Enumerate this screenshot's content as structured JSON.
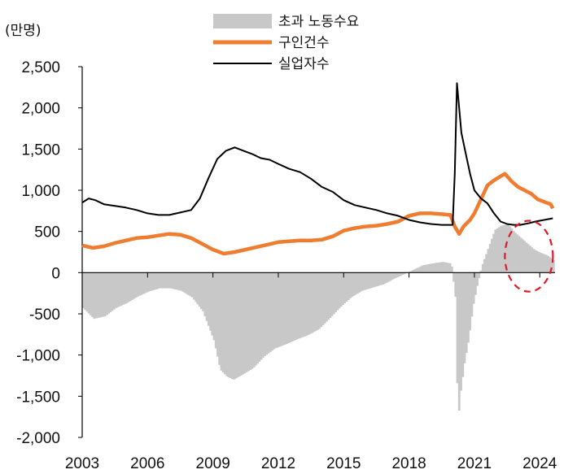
{
  "chart_data": {
    "type": "bar+line",
    "unit_label": "(만명)",
    "y_ticks": [
      "2,500",
      "2,000",
      "1,500",
      "1,000",
      "500",
      "0",
      "-500",
      "-1,000",
      "-1,500",
      "-2,000"
    ],
    "y_tick_values": [
      2500,
      2000,
      1500,
      1000,
      500,
      0,
      -500,
      -1000,
      -1500,
      -2000
    ],
    "ylim": [
      -2000,
      2500
    ],
    "x_ticks": [
      "2003",
      "2006",
      "2009",
      "2012",
      "2015",
      "2018",
      "2021",
      "2024"
    ],
    "x_tick_values": [
      2003,
      2006,
      2009,
      2012,
      2015,
      2018,
      2021,
      2024
    ],
    "xlim": [
      2003,
      2024.7
    ],
    "legend_position": "top-center",
    "series": [
      {
        "name": "초과 노동수요",
        "kind": "bar",
        "color": "#c8c8c8",
        "points": [
          [
            2003.0,
            -430
          ],
          [
            2003.5,
            -560
          ],
          [
            2004.0,
            -530
          ],
          [
            2004.5,
            -430
          ],
          [
            2005.0,
            -370
          ],
          [
            2005.5,
            -290
          ],
          [
            2006.0,
            -230
          ],
          [
            2006.5,
            -190
          ],
          [
            2007.0,
            -190
          ],
          [
            2007.5,
            -220
          ],
          [
            2008.0,
            -300
          ],
          [
            2008.5,
            -470
          ],
          [
            2009.0,
            -820
          ],
          [
            2009.3,
            -1180
          ],
          [
            2009.6,
            -1260
          ],
          [
            2009.9,
            -1300
          ],
          [
            2010.3,
            -1240
          ],
          [
            2010.8,
            -1160
          ],
          [
            2011.3,
            -1020
          ],
          [
            2011.8,
            -920
          ],
          [
            2012.3,
            -870
          ],
          [
            2012.8,
            -810
          ],
          [
            2013.3,
            -760
          ],
          [
            2013.8,
            -690
          ],
          [
            2014.3,
            -560
          ],
          [
            2014.8,
            -420
          ],
          [
            2015.3,
            -300
          ],
          [
            2015.8,
            -220
          ],
          [
            2016.3,
            -180
          ],
          [
            2016.8,
            -140
          ],
          [
            2017.3,
            -70
          ],
          [
            2017.8,
            -10
          ],
          [
            2018.2,
            40
          ],
          [
            2018.6,
            90
          ],
          [
            2019.0,
            110
          ],
          [
            2019.5,
            130
          ],
          [
            2019.9,
            110
          ],
          [
            2020.1,
            -330
          ],
          [
            2020.2,
            -1850
          ],
          [
            2020.3,
            -1500
          ],
          [
            2020.5,
            -1100
          ],
          [
            2020.7,
            -800
          ],
          [
            2020.9,
            -400
          ],
          [
            2021.1,
            -140
          ],
          [
            2021.3,
            80
          ],
          [
            2021.6,
            300
          ],
          [
            2021.9,
            520
          ],
          [
            2022.2,
            570
          ],
          [
            2022.5,
            590
          ],
          [
            2022.8,
            490
          ],
          [
            2023.1,
            420
          ],
          [
            2023.4,
            350
          ],
          [
            2023.7,
            280
          ],
          [
            2024.0,
            240
          ],
          [
            2024.3,
            210
          ],
          [
            2024.6,
            150
          ]
        ]
      },
      {
        "name": "구인건수",
        "kind": "line",
        "color": "#ee7d31",
        "points": [
          [
            2003.0,
            330
          ],
          [
            2003.5,
            300
          ],
          [
            2004.0,
            320
          ],
          [
            2004.5,
            360
          ],
          [
            2005.0,
            390
          ],
          [
            2005.5,
            420
          ],
          [
            2006.0,
            430
          ],
          [
            2006.5,
            450
          ],
          [
            2007.0,
            470
          ],
          [
            2007.5,
            460
          ],
          [
            2008.0,
            420
          ],
          [
            2008.5,
            350
          ],
          [
            2009.0,
            280
          ],
          [
            2009.5,
            230
          ],
          [
            2010.0,
            250
          ],
          [
            2010.5,
            280
          ],
          [
            2011.0,
            310
          ],
          [
            2011.5,
            340
          ],
          [
            2012.0,
            370
          ],
          [
            2012.5,
            380
          ],
          [
            2013.0,
            390
          ],
          [
            2013.5,
            390
          ],
          [
            2014.0,
            400
          ],
          [
            2014.5,
            440
          ],
          [
            2015.0,
            510
          ],
          [
            2015.5,
            540
          ],
          [
            2016.0,
            560
          ],
          [
            2016.5,
            570
          ],
          [
            2017.0,
            590
          ],
          [
            2017.5,
            620
          ],
          [
            2018.0,
            690
          ],
          [
            2018.5,
            720
          ],
          [
            2019.0,
            720
          ],
          [
            2019.5,
            710
          ],
          [
            2019.9,
            700
          ],
          [
            2020.1,
            560
          ],
          [
            2020.3,
            470
          ],
          [
            2020.5,
            560
          ],
          [
            2020.8,
            640
          ],
          [
            2021.0,
            720
          ],
          [
            2021.3,
            890
          ],
          [
            2021.6,
            1060
          ],
          [
            2021.9,
            1120
          ],
          [
            2022.2,
            1170
          ],
          [
            2022.4,
            1200
          ],
          [
            2022.7,
            1110
          ],
          [
            2023.0,
            1040
          ],
          [
            2023.3,
            1000
          ],
          [
            2023.6,
            960
          ],
          [
            2023.9,
            890
          ],
          [
            2024.2,
            860
          ],
          [
            2024.5,
            830
          ],
          [
            2024.6,
            780
          ]
        ]
      },
      {
        "name": "실업자수",
        "kind": "line",
        "color": "#000000",
        "points": [
          [
            2003.0,
            850
          ],
          [
            2003.3,
            900
          ],
          [
            2003.6,
            880
          ],
          [
            2004.0,
            830
          ],
          [
            2004.5,
            810
          ],
          [
            2005.0,
            790
          ],
          [
            2005.5,
            760
          ],
          [
            2006.0,
            720
          ],
          [
            2006.5,
            700
          ],
          [
            2007.0,
            700
          ],
          [
            2007.5,
            730
          ],
          [
            2008.0,
            760
          ],
          [
            2008.4,
            900
          ],
          [
            2008.8,
            1150
          ],
          [
            2009.2,
            1380
          ],
          [
            2009.6,
            1480
          ],
          [
            2010.0,
            1520
          ],
          [
            2010.4,
            1480
          ],
          [
            2010.8,
            1440
          ],
          [
            2011.2,
            1390
          ],
          [
            2011.6,
            1370
          ],
          [
            2012.0,
            1320
          ],
          [
            2012.5,
            1260
          ],
          [
            2013.0,
            1220
          ],
          [
            2013.5,
            1140
          ],
          [
            2014.0,
            1040
          ],
          [
            2014.5,
            980
          ],
          [
            2015.0,
            880
          ],
          [
            2015.5,
            820
          ],
          [
            2016.0,
            790
          ],
          [
            2016.5,
            760
          ],
          [
            2017.0,
            720
          ],
          [
            2017.5,
            690
          ],
          [
            2018.0,
            640
          ],
          [
            2018.5,
            610
          ],
          [
            2019.0,
            590
          ],
          [
            2019.5,
            580
          ],
          [
            2019.9,
            580
          ],
          [
            2020.0,
            580
          ],
          [
            2020.1,
            1200
          ],
          [
            2020.2,
            2300
          ],
          [
            2020.3,
            2000
          ],
          [
            2020.4,
            1700
          ],
          [
            2020.6,
            1450
          ],
          [
            2020.8,
            1200
          ],
          [
            2021.0,
            1000
          ],
          [
            2021.3,
            900
          ],
          [
            2021.6,
            840
          ],
          [
            2021.9,
            720
          ],
          [
            2022.2,
            620
          ],
          [
            2022.5,
            590
          ],
          [
            2022.8,
            580
          ],
          [
            2023.1,
            580
          ],
          [
            2023.5,
            600
          ],
          [
            2023.8,
            620
          ],
          [
            2024.2,
            640
          ],
          [
            2024.6,
            660
          ]
        ]
      }
    ],
    "annotation": {
      "shape": "dashed-ellipse",
      "color": "#e0192a",
      "x_center": 2023.5,
      "y_center": 200,
      "x_radius": 1.1,
      "y_radius": 430
    }
  }
}
